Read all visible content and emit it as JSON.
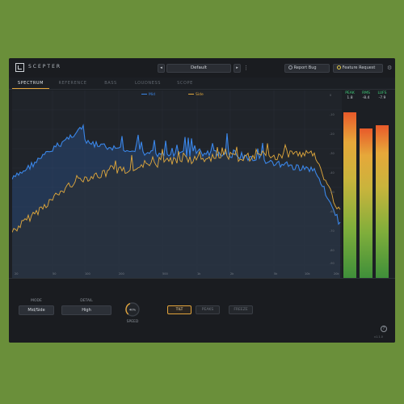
{
  "app": {
    "title": "SCEPTER"
  },
  "header": {
    "prev_label": "◂",
    "next_label": "▸",
    "preset": "Default",
    "menu_glyph": "⋮",
    "report_bug": "Report Bug",
    "feature_request": "Feature Request",
    "report_icon": "bug-icon",
    "feature_icon": "lightbulb-icon",
    "settings_icon": "gear-icon"
  },
  "tabs": [
    {
      "label": "SPECTRUM",
      "active": true
    },
    {
      "label": "REFERENCE",
      "active": false
    },
    {
      "label": "BASS",
      "active": false
    },
    {
      "label": "LOUDNESS",
      "active": false
    },
    {
      "label": "SCOPE",
      "active": false
    }
  ],
  "spectrum": {
    "legend": [
      {
        "name": "Mid",
        "color": "#3a86e8"
      },
      {
        "name": "Side",
        "color": "#e2a93c"
      }
    ],
    "x_ticks": [
      "20",
      "50",
      "100",
      "200",
      "500",
      "1k",
      "2k",
      "5k",
      "10k",
      "20k"
    ],
    "y_ticks": [
      "0",
      "-10",
      "-20",
      "-30",
      "-40",
      "-50",
      "-60",
      "-70",
      "-80",
      "-90"
    ]
  },
  "meters": [
    {
      "label": "PEAK",
      "value": "1.8",
      "level": 0.93
    },
    {
      "label": "RMS",
      "value": "-8.4",
      "level": 0.84
    },
    {
      "label": "LUFS",
      "value": "-7.9",
      "level": 0.86
    }
  ],
  "controls": {
    "mode_label": "MODE",
    "mode_value": "Mid/Side",
    "detail_label": "DETAIL",
    "detail_value": "High",
    "speed_label": "SPEED",
    "speed_value": "40%",
    "speed_level": 0.4,
    "tilt": "TILT",
    "peaks": "PEAKS",
    "freeze": "FREEZE",
    "help_glyph": "?",
    "version": "v1.1.0"
  }
}
